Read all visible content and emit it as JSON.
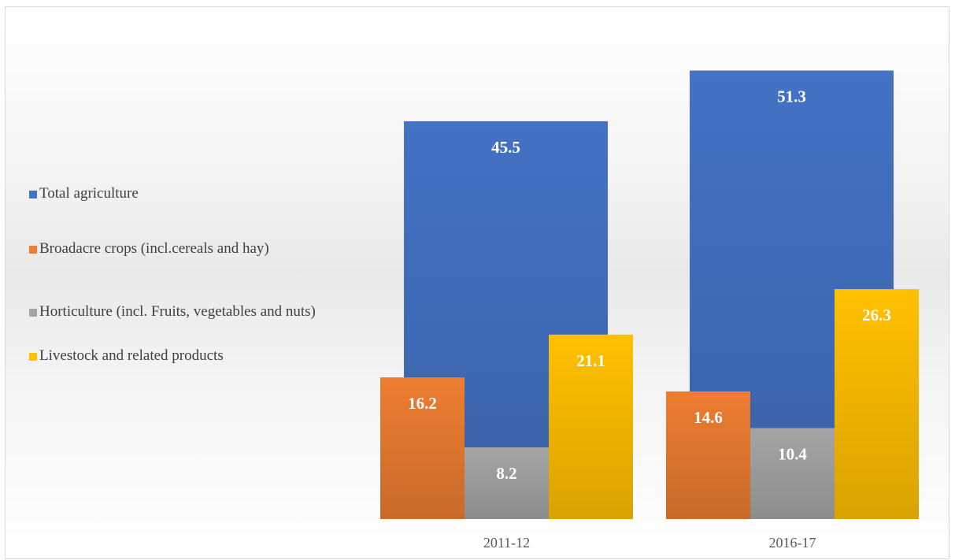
{
  "chart_data": {
    "type": "bar",
    "categories": [
      "2011-12",
      "2016-17"
    ],
    "series": [
      {
        "name": "Total agriculture",
        "values": [
          45.5,
          51.3
        ],
        "color": "#4472c4"
      },
      {
        "name": "Broadacre crops (incl.cereals and hay)",
        "values": [
          16.2,
          14.6
        ],
        "color": "#ed7d31"
      },
      {
        "name": "Horticulture (incl. Fruits, vegetables and nuts)",
        "values": [
          8.2,
          10.4
        ],
        "color": "#a5a5a5"
      },
      {
        "name": "Livestock and related products",
        "values": [
          21.1,
          26.3
        ],
        "color": "#ffc000"
      }
    ],
    "title": "",
    "xlabel": "",
    "ylabel": "",
    "ylim": [
      0,
      60
    ],
    "grid": false,
    "legend_position": "left",
    "data_labels": true,
    "layout_note": "Total agriculture bar drawn behind the component bars within each category"
  }
}
